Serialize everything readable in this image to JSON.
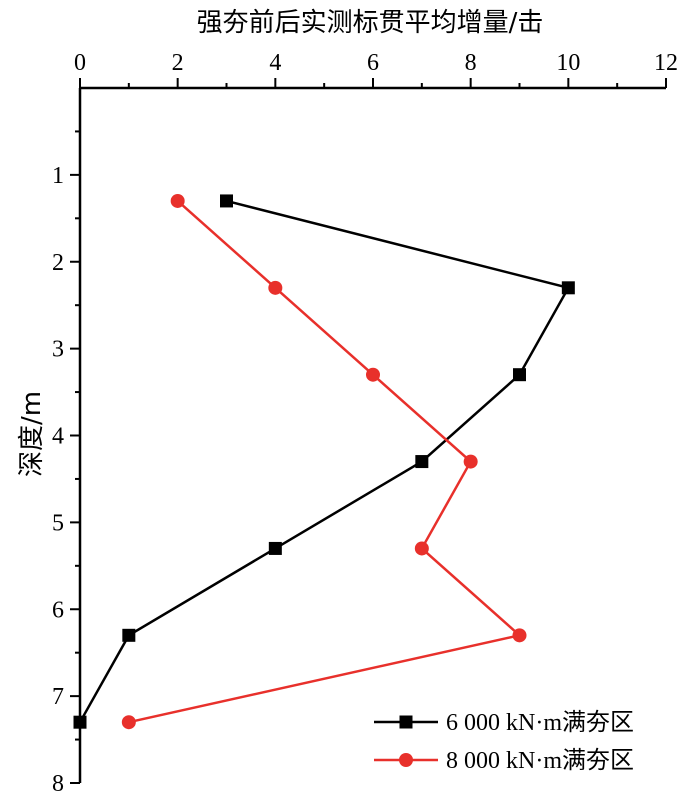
{
  "chart_data": {
    "type": "line",
    "title": "",
    "xlabel": "强夯前后实测标贯平均增量/击",
    "ylabel": "深度/m",
    "xlim": [
      0,
      12
    ],
    "ylim": [
      0,
      8
    ],
    "x_axis_position": "top",
    "y_inverted": true,
    "x_ticks": [
      0,
      2,
      4,
      6,
      8,
      10,
      12
    ],
    "y_ticks": [
      1,
      2,
      3,
      4,
      5,
      6,
      7,
      8
    ],
    "legend_position": "bottom-right",
    "series": [
      {
        "name": "6 000 kN·m满夯区",
        "color": "#000000",
        "marker": "square",
        "points": [
          {
            "x": 3,
            "y": 1.3
          },
          {
            "x": 10,
            "y": 2.3
          },
          {
            "x": 9,
            "y": 3.3
          },
          {
            "x": 7,
            "y": 4.3
          },
          {
            "x": 4,
            "y": 5.3
          },
          {
            "x": 1,
            "y": 6.3
          },
          {
            "x": 0,
            "y": 7.3
          }
        ]
      },
      {
        "name": "8 000 kN·m满夯区",
        "color": "#e8302b",
        "marker": "circle",
        "points": [
          {
            "x": 2,
            "y": 1.3
          },
          {
            "x": 4,
            "y": 2.3
          },
          {
            "x": 6,
            "y": 3.3
          },
          {
            "x": 8,
            "y": 4.3
          },
          {
            "x": 7,
            "y": 5.3
          },
          {
            "x": 9,
            "y": 6.3
          },
          {
            "x": 1,
            "y": 7.3
          }
        ]
      }
    ]
  }
}
